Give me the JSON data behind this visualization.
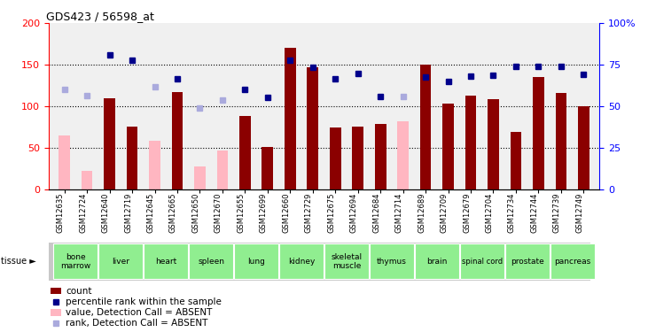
{
  "title": "GDS423 / 56598_at",
  "samples": [
    "GSM12635",
    "GSM12724",
    "GSM12640",
    "GSM12719",
    "GSM12645",
    "GSM12665",
    "GSM12650",
    "GSM12670",
    "GSM12655",
    "GSM12699",
    "GSM12660",
    "GSM12729",
    "GSM12675",
    "GSM12694",
    "GSM12684",
    "GSM12714",
    "GSM12689",
    "GSM12709",
    "GSM12679",
    "GSM12704",
    "GSM12734",
    "GSM12744",
    "GSM12739",
    "GSM12749"
  ],
  "count_values": [
    65,
    22,
    110,
    76,
    58,
    117,
    27,
    47,
    88,
    51,
    170,
    147,
    74,
    76,
    79,
    null,
    150,
    103,
    113,
    109,
    69,
    135,
    116,
    100
  ],
  "absent_value": [
    65,
    22,
    null,
    null,
    58,
    null,
    27,
    47,
    null,
    null,
    null,
    null,
    null,
    null,
    null,
    82,
    null,
    null,
    null,
    null,
    null,
    null,
    null,
    null
  ],
  "rank_values": [
    120,
    113,
    162,
    155,
    123,
    133,
    98,
    107,
    120,
    111,
    155,
    147,
    133,
    140,
    112,
    null,
    135,
    130,
    136,
    137,
    148,
    148,
    148,
    138
  ],
  "absent_rank": [
    120,
    113,
    null,
    null,
    123,
    null,
    98,
    107,
    null,
    null,
    null,
    null,
    null,
    null,
    null,
    112,
    null,
    null,
    null,
    null,
    null,
    null,
    null,
    null
  ],
  "tissues": [
    {
      "name": "bone\nmarrow",
      "start": 0,
      "end": 2
    },
    {
      "name": "liver",
      "start": 2,
      "end": 4
    },
    {
      "name": "heart",
      "start": 4,
      "end": 6
    },
    {
      "name": "spleen",
      "start": 6,
      "end": 8
    },
    {
      "name": "lung",
      "start": 8,
      "end": 10
    },
    {
      "name": "kidney",
      "start": 10,
      "end": 12
    },
    {
      "name": "skeletal\nmuscle",
      "start": 12,
      "end": 14
    },
    {
      "name": "thymus",
      "start": 14,
      "end": 16
    },
    {
      "name": "brain",
      "start": 16,
      "end": 18
    },
    {
      "name": "spinal cord",
      "start": 18,
      "end": 20
    },
    {
      "name": "prostate",
      "start": 20,
      "end": 22
    },
    {
      "name": "pancreas",
      "start": 22,
      "end": 24
    }
  ],
  "ylim_left": [
    0,
    200
  ],
  "ylim_right": [
    0,
    100
  ],
  "yticks_left": [
    0,
    50,
    100,
    150,
    200
  ],
  "yticks_right": [
    0,
    25,
    50,
    75,
    100
  ],
  "bar_color_present": "#8B0000",
  "bar_color_absent": "#FFB6C1",
  "rank_color_present": "#00008B",
  "rank_color_absent": "#AAAADD",
  "grid_levels": [
    50,
    100,
    150
  ],
  "bar_width": 0.5,
  "plot_bg": "#F0F0F0",
  "tissue_green": "#90EE90",
  "tissue_gray": "#C8C8C8",
  "legend_items": [
    {
      "color": "#8B0000",
      "type": "rect",
      "label": "count"
    },
    {
      "color": "#00008B",
      "type": "square",
      "label": "percentile rank within the sample"
    },
    {
      "color": "#FFB6C1",
      "type": "rect",
      "label": "value, Detection Call = ABSENT"
    },
    {
      "color": "#AAAADD",
      "type": "square",
      "label": "rank, Detection Call = ABSENT"
    }
  ]
}
